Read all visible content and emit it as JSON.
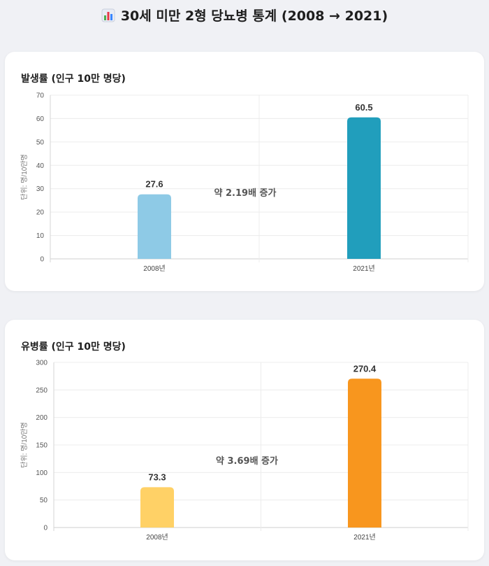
{
  "page": {
    "title": "30세 미만 2형 당뇨병 통계 (2008 → 2021)",
    "title_icon": "bar-chart-icon"
  },
  "chart_data": [
    {
      "type": "bar",
      "title": "발생률 (인구 10만 명당)",
      "ylabel": "단위: 명/10만명",
      "categories": [
        "2008년",
        "2021년"
      ],
      "values": [
        27.6,
        60.5
      ],
      "value_labels": [
        "27.6",
        "60.5"
      ],
      "colors": [
        "#8ecae6",
        "#219ebc"
      ],
      "ylim": [
        0,
        70
      ],
      "yticks": [
        0,
        10,
        20,
        30,
        40,
        50,
        60,
        70
      ],
      "annotation": "약 2.19배 증가",
      "grid": true
    },
    {
      "type": "bar",
      "title": "유병률 (인구 10만 명당)",
      "ylabel": "단위: 명/10만명",
      "categories": [
        "2008년",
        "2021년"
      ],
      "values": [
        73.3,
        270.4
      ],
      "value_labels": [
        "73.3",
        "270.4"
      ],
      "colors": [
        "#ffd166",
        "#f8961e"
      ],
      "ylim": [
        0,
        300
      ],
      "yticks": [
        0,
        50,
        100,
        150,
        200,
        250,
        300
      ],
      "annotation": "약 3.69배 증가",
      "grid": true
    }
  ]
}
